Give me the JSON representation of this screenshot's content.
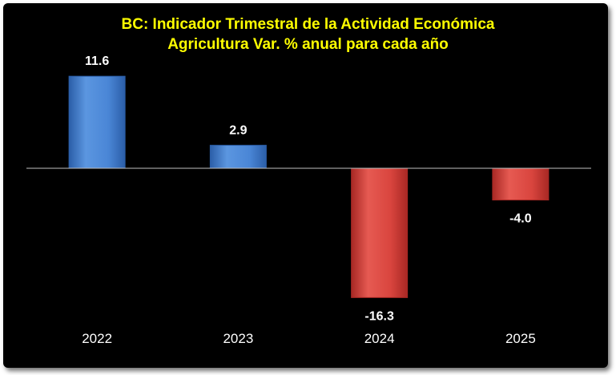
{
  "chart_data": {
    "type": "bar",
    "title_line1": "BC: Indicador Trimestral de la Actividad Económica",
    "title_line2": "Agricultura Var. % anual para cada año",
    "categories": [
      "2022",
      "2023",
      "2024",
      "2025"
    ],
    "values": [
      11.6,
      2.9,
      -16.3,
      -4.0
    ],
    "data_labels": [
      "11.6",
      "2.9",
      "-16.3",
      "-4.0"
    ],
    "xlabel": "",
    "ylabel": "",
    "grid": false,
    "legend": "none",
    "colors": {
      "positive": "#4a86d6",
      "positive_dark": "#2b5ea8",
      "negative": "#d9453e",
      "negative_dark": "#a82824",
      "title": "#ffff00",
      "background": "#000000"
    }
  }
}
